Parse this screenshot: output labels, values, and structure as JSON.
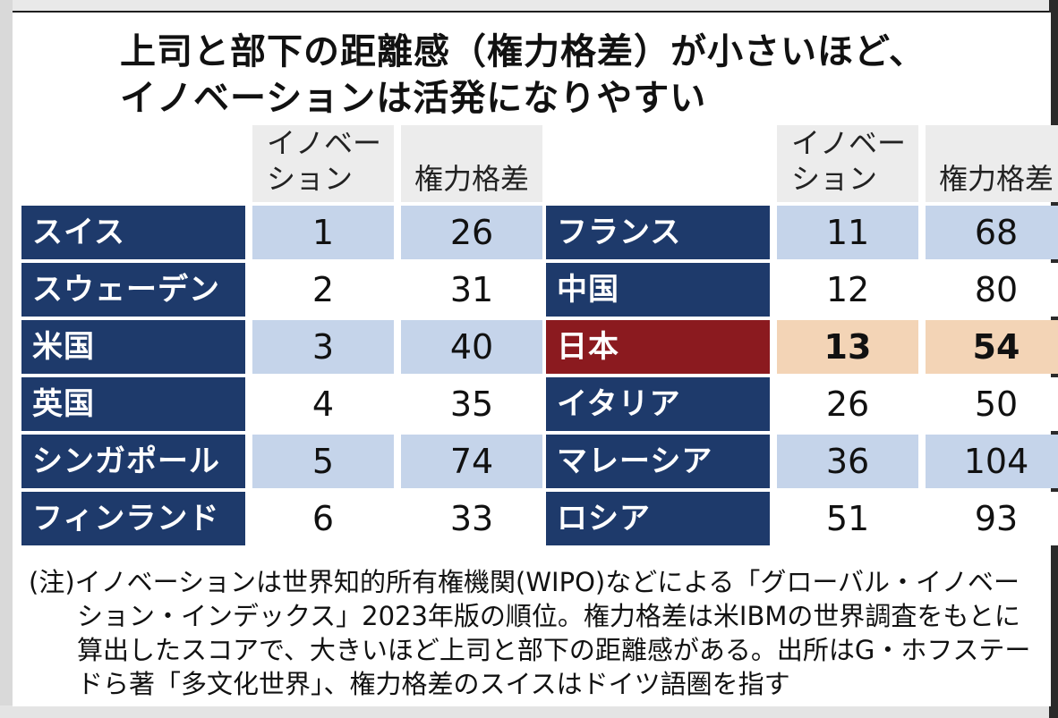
{
  "title": {
    "line1": "上司と部下の距離感（権力格差）が小さいほど、",
    "line2": "イノベーションは活発になりやすい"
  },
  "headers": {
    "innovation": "イノベー\nション",
    "power": "権力格差"
  },
  "left_rows": [
    {
      "country": "スイス",
      "innovation": "1",
      "power": "26"
    },
    {
      "country": "スウェーデン",
      "innovation": "2",
      "power": "31"
    },
    {
      "country": "米国",
      "innovation": "3",
      "power": "40"
    },
    {
      "country": "英国",
      "innovation": "4",
      "power": "35"
    },
    {
      "country": "シンガポール",
      "innovation": "5",
      "power": "74"
    },
    {
      "country": "フィンランド",
      "innovation": "6",
      "power": "33"
    }
  ],
  "right_rows": [
    {
      "country": "フランス",
      "innovation": "11",
      "power": "68"
    },
    {
      "country": "中国",
      "innovation": "12",
      "power": "80"
    },
    {
      "country": "日本",
      "innovation": "13",
      "power": "54"
    },
    {
      "country": "イタリア",
      "innovation": "26",
      "power": "50"
    },
    {
      "country": "マレーシア",
      "innovation": "36",
      "power": "104"
    },
    {
      "country": "ロシア",
      "innovation": "51",
      "power": "93"
    }
  ],
  "note": {
    "line1": "(注)イノベーションは世界知的所有権機関(WIPO)などによる「グローバル・イノベー",
    "line2": "ション・インデックス」2023年版の順位。権力格差は米IBMの世界調査をもとに",
    "line3": "算出したスコアで、大きいほど上司と部下の距離感がある。出所はG・ホフステー",
    "line4": "ドら著「多文化世界」、権力格差のスイスはドイツ語圏を指す"
  },
  "colors": {
    "name_bg": "#1e3a6b",
    "highlight_name_bg": "#8b1a1f",
    "shade_bg": "#c5d4ea",
    "highlight_val_bg": "#f3d4b6"
  }
}
